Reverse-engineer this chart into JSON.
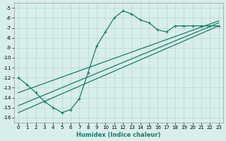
{
  "bg_color": "#d8eeea",
  "line_color": "#1a7a6a",
  "grid_color": "#b8ddd8",
  "xlabel": "Humidex (Indice chaleur)",
  "xlim": [
    -0.5,
    23.5
  ],
  "ylim": [
    -16.5,
    -4.5
  ],
  "xticks": [
    0,
    1,
    2,
    3,
    4,
    5,
    6,
    7,
    8,
    9,
    10,
    11,
    12,
    13,
    14,
    15,
    16,
    17,
    18,
    19,
    20,
    21,
    22,
    23
  ],
  "yticks": [
    -16,
    -15,
    -14,
    -13,
    -12,
    -11,
    -10,
    -9,
    -8,
    -7,
    -6,
    -5
  ],
  "zigzag_x": [
    0,
    1,
    2,
    3,
    4,
    5,
    6,
    7,
    8,
    9,
    10,
    11,
    12,
    13,
    14,
    15,
    16,
    17,
    18,
    19,
    20,
    21,
    22,
    23
  ],
  "zigzag_y": [
    -12.0,
    -12.7,
    -13.5,
    -14.4,
    -15.0,
    -15.5,
    -15.2,
    -14.1,
    -11.5,
    -8.8,
    -7.4,
    -6.0,
    -5.3,
    -5.6,
    -6.2,
    -6.5,
    -7.2,
    -7.4,
    -6.8,
    -6.8,
    -6.8,
    -6.8,
    -6.8,
    -6.8
  ],
  "line1_x": [
    0,
    23
  ],
  "line1_y": [
    -15.5,
    -6.8
  ],
  "line2_x": [
    0,
    23
  ],
  "line2_y": [
    -14.8,
    -6.5
  ],
  "line3_x": [
    0,
    23
  ],
  "line3_y": [
    -13.5,
    -6.3
  ]
}
